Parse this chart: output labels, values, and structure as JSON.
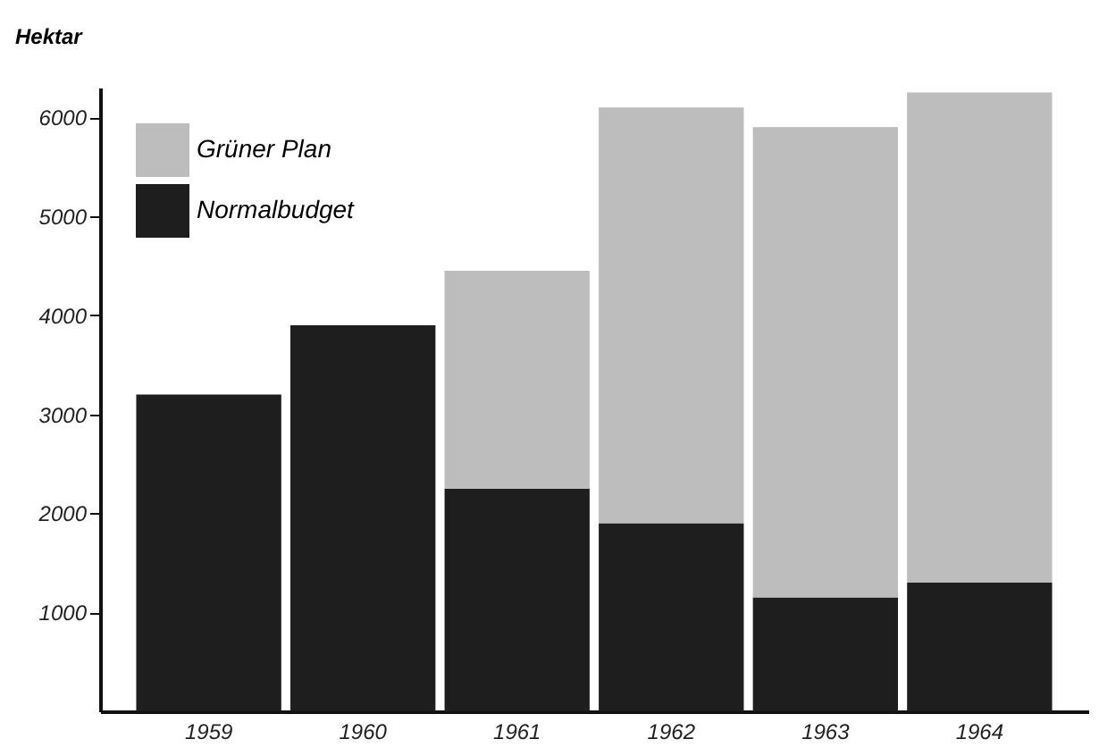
{
  "chart_data": {
    "type": "bar",
    "ylabel": "Hektar",
    "categories": [
      "1959",
      "1960",
      "1961",
      "1962",
      "1963",
      "1964"
    ],
    "series": [
      {
        "name": "Normalbudget",
        "color": "#1e1e1e",
        "values": [
          3200,
          3900,
          2250,
          1900,
          1150,
          1300
        ]
      },
      {
        "name": "Grüner Plan",
        "color": "#bdbdbd",
        "values": [
          null,
          null,
          2200,
          4200,
          4750,
          4950
        ]
      }
    ],
    "stacked": true,
    "ylim": [
      0,
      6300
    ],
    "yticks": [
      1000,
      2000,
      3000,
      4000,
      5000,
      6000
    ],
    "grid": false,
    "legend": "top left"
  }
}
